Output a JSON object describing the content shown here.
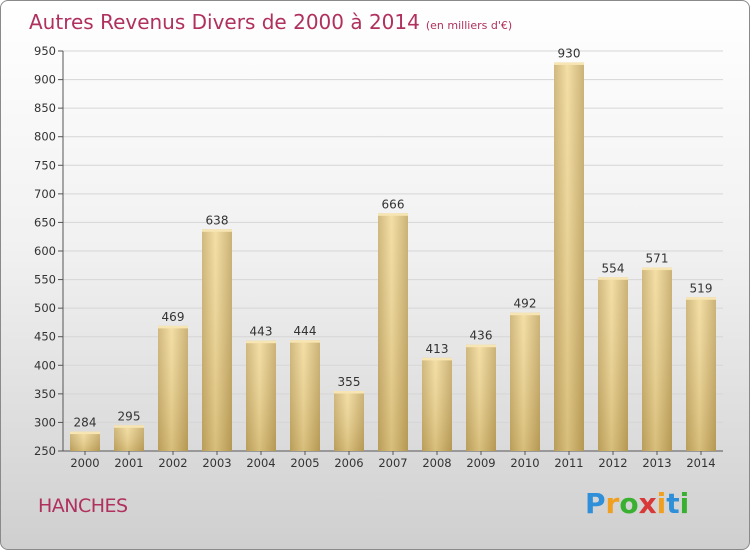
{
  "title": "Autres Revenus Divers de 2000 à 2014",
  "subtitle": "(en milliers d'€)",
  "commune": "HANCHES",
  "logo": {
    "text": "Proxiti",
    "letters": [
      "P",
      "r",
      "o",
      "x",
      "i",
      "t",
      "i"
    ],
    "colors": [
      "#2f8fd8",
      "#f0a020",
      "#3ab030",
      "#d83838",
      "#f0a020",
      "#2f8fd8",
      "#3ab030"
    ]
  },
  "chart_data": {
    "type": "bar",
    "categories": [
      "2000",
      "2001",
      "2002",
      "2003",
      "2004",
      "2005",
      "2006",
      "2007",
      "2008",
      "2009",
      "2010",
      "2011",
      "2012",
      "2013",
      "2014"
    ],
    "values": [
      284,
      295,
      469,
      638,
      443,
      444,
      355,
      666,
      413,
      436,
      492,
      930,
      554,
      571,
      519
    ],
    "ylim": [
      250,
      950
    ],
    "yticks": [
      250,
      300,
      350,
      400,
      450,
      500,
      550,
      600,
      650,
      700,
      750,
      800,
      850,
      900,
      950
    ],
    "grid": true,
    "bar_color": "#e8cd88",
    "title": "Autres Revenus Divers de 2000 à 2014",
    "xlabel": "",
    "ylabel": ""
  }
}
